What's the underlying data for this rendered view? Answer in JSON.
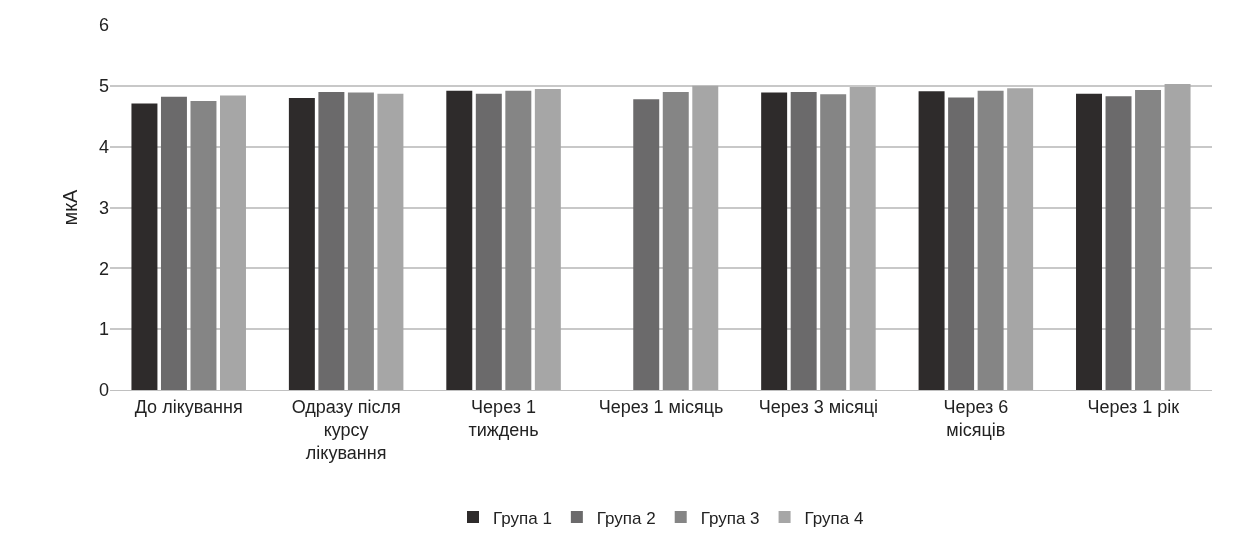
{
  "chart_data": {
    "type": "bar",
    "ylabel": "мкА",
    "categories": [
      "До лікування",
      "Одразу після курсу лікування",
      "Через 1 тиждень",
      "Через 1 місяць",
      "Через 3 місяці",
      "Через 6 місяців",
      "Через 1 рік"
    ],
    "series": [
      {
        "name": "Група 1",
        "color": "#2e2b2b",
        "values": [
          4.71,
          4.8,
          4.92,
          null,
          4.89,
          4.91,
          4.87
        ]
      },
      {
        "name": "Група 2",
        "color": "#6b6a6b",
        "values": [
          4.82,
          4.9,
          4.87,
          4.78,
          4.9,
          4.81,
          4.83
        ]
      },
      {
        "name": "Група 3",
        "color": "#858585",
        "values": [
          4.75,
          4.89,
          4.92,
          4.9,
          4.86,
          4.92,
          4.93
        ]
      },
      {
        "name": "Група 4",
        "color": "#a6a6a6",
        "values": [
          4.84,
          4.87,
          4.95,
          5.0,
          4.98,
          4.96,
          5.03
        ]
      }
    ],
    "ylim": [
      0,
      6
    ],
    "yticks": [
      0,
      1,
      2,
      3,
      4,
      5,
      6
    ],
    "grid": "y",
    "legend": "bottom"
  }
}
